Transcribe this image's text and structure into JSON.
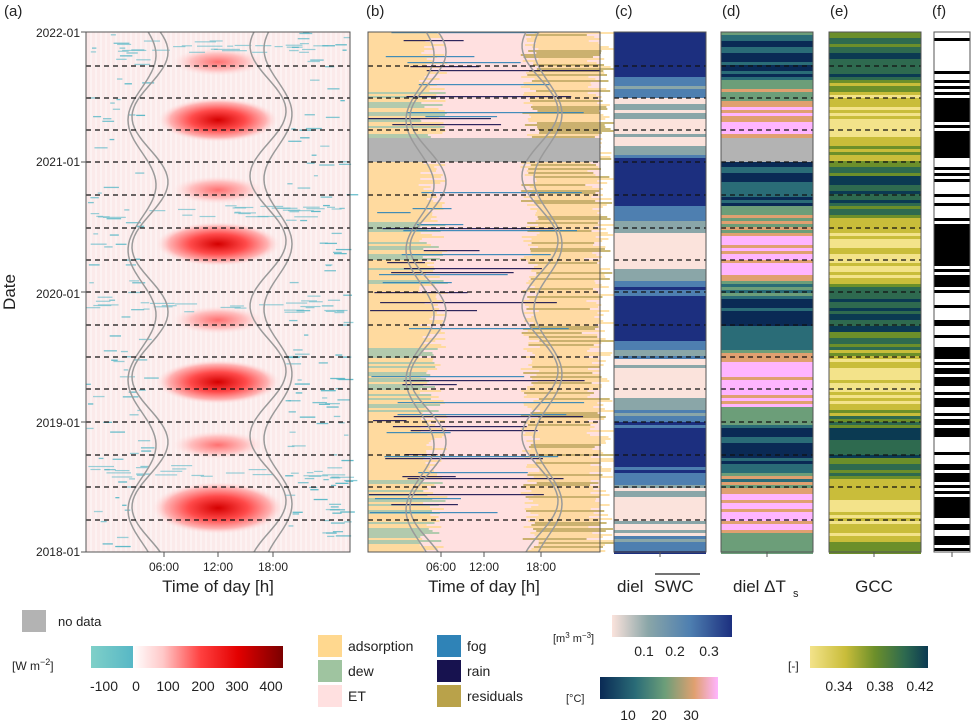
{
  "panels": [
    {
      "label": "(a)",
      "xlabel": "Time of day [h]",
      "xticks": [
        "06:00",
        "12:00",
        "18:00"
      ]
    },
    {
      "label": "(b)",
      "xlabel": "Time of day [h]",
      "xticks": [
        "06:00",
        "12:00",
        "18:00"
      ]
    },
    {
      "label": "(c)",
      "xlabel_prefix": "diel",
      "xlabel_main": "SWC"
    },
    {
      "label": "(d)",
      "xlabel_prefix": "diel ΔT",
      "xlabel_sub": "s"
    },
    {
      "label": "(e)",
      "xlabel": "GCC"
    },
    {
      "label": "(f)",
      "xlabel": ""
    }
  ],
  "ylabel": "Date",
  "date_ticks": [
    "2022-01",
    "2021-01",
    "2020-01",
    "2019-01",
    "2018-01"
  ],
  "no_data_label": "no data",
  "legend_flux": {
    "unit_prefix": "[W m",
    "unit_exp": "−2",
    "unit_suffix": "]",
    "ticks": [
      "-100",
      "0",
      "100",
      "200",
      "300",
      "400"
    ],
    "colors": {
      "neg_low": "#7fd0c8",
      "neg_high": "#57b7c6",
      "zero": "#ffffff",
      "low": "#ffd6d6",
      "mid": "#ff4040",
      "high": "#e30000",
      "max": "#7a0000"
    }
  },
  "legend_categories": [
    {
      "label": "adsorption",
      "color": "#ffd88f"
    },
    {
      "label": "dew",
      "color": "#9fc4a0"
    },
    {
      "label": "ET",
      "color": "#ffe0e0"
    },
    {
      "label": "fog",
      "color": "#2f83b7"
    },
    {
      "label": "rain",
      "color": "#17124f"
    },
    {
      "label": "residuals",
      "color": "#b9a24a"
    }
  ],
  "legend_swc": {
    "unit_prefix": "[m",
    "unit_exp1": "3",
    "unit_mid": " m",
    "unit_exp2": "−3",
    "unit_suffix": "]",
    "ticks": [
      "0.1",
      "0.2",
      "0.3"
    ],
    "colors": [
      "#fbe3dc",
      "#8aa6a8",
      "#4e7fb0",
      "#1c2f7f"
    ]
  },
  "legend_temp": {
    "unit": "[°C]",
    "ticks": [
      "10",
      "20",
      "30"
    ],
    "colors": [
      "#0a2a55",
      "#2a6c77",
      "#6c9e79",
      "#e0a070",
      "#ffb5ff"
    ]
  },
  "legend_gcc": {
    "unit": "[-]",
    "ticks": [
      "0.34",
      "0.38",
      "0.42"
    ],
    "colors": [
      "#f3e38a",
      "#c9bd3a",
      "#6c8f2a",
      "#2e6a4f",
      "#0b3a52"
    ]
  },
  "colors": {
    "no_data": "#b3b3b3",
    "frame": "#555555",
    "dash": "#111111",
    "sunline": "#9a9a9a"
  }
}
